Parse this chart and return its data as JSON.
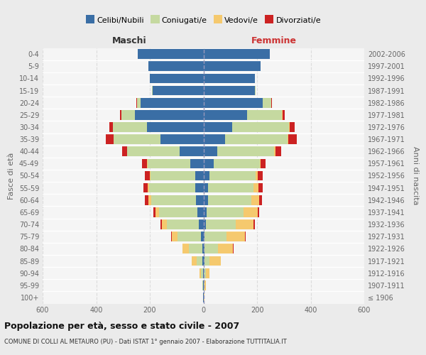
{
  "age_groups": [
    "0-4",
    "5-9",
    "10-14",
    "15-19",
    "20-24",
    "25-29",
    "30-34",
    "35-39",
    "40-44",
    "45-49",
    "50-54",
    "55-59",
    "60-64",
    "65-69",
    "70-74",
    "75-79",
    "80-84",
    "85-89",
    "90-94",
    "95-99",
    "100+"
  ],
  "birth_years": [
    "2002-2006",
    "1997-2001",
    "1992-1996",
    "1987-1991",
    "1982-1986",
    "1977-1981",
    "1972-1976",
    "1967-1971",
    "1962-1966",
    "1957-1961",
    "1952-1956",
    "1947-1951",
    "1942-1946",
    "1937-1941",
    "1932-1936",
    "1927-1931",
    "1922-1926",
    "1917-1921",
    "1912-1916",
    "1907-1911",
    "≤ 1906"
  ],
  "colors": {
    "celibi": "#3a6ea5",
    "coniugati": "#c5d9a0",
    "vedovi": "#f5c96e",
    "divorziati": "#cc2222"
  },
  "males": {
    "celibi": [
      245,
      205,
      200,
      190,
      235,
      255,
      210,
      160,
      90,
      50,
      30,
      30,
      28,
      22,
      18,
      8,
      5,
      4,
      2,
      1,
      1
    ],
    "coniugati": [
      0,
      0,
      1,
      2,
      14,
      52,
      128,
      175,
      195,
      158,
      168,
      173,
      168,
      143,
      118,
      88,
      50,
      22,
      6,
      2,
      0
    ],
    "vedovi": [
      0,
      0,
      0,
      0,
      0,
      0,
      0,
      0,
      1,
      2,
      2,
      4,
      8,
      13,
      18,
      22,
      22,
      18,
      7,
      2,
      0
    ],
    "divorziati": [
      0,
      0,
      0,
      0,
      2,
      4,
      14,
      28,
      18,
      18,
      18,
      18,
      14,
      10,
      5,
      2,
      0,
      0,
      0,
      0,
      0
    ]
  },
  "females": {
    "celibi": [
      248,
      212,
      192,
      192,
      220,
      162,
      108,
      82,
      52,
      38,
      22,
      18,
      18,
      12,
      8,
      5,
      5,
      4,
      2,
      1,
      1
    ],
    "coniugati": [
      0,
      0,
      1,
      4,
      32,
      132,
      212,
      232,
      212,
      172,
      172,
      168,
      162,
      138,
      112,
      82,
      48,
      18,
      6,
      2,
      0
    ],
    "vedovi": [
      0,
      0,
      0,
      0,
      1,
      2,
      2,
      3,
      4,
      4,
      8,
      18,
      28,
      52,
      68,
      68,
      58,
      42,
      14,
      5,
      2
    ],
    "divorziati": [
      0,
      0,
      0,
      0,
      2,
      7,
      18,
      32,
      22,
      18,
      18,
      17,
      11,
      7,
      4,
      2,
      2,
      0,
      0,
      0,
      0
    ]
  },
  "title": "Popolazione per età, sesso e stato civile - 2007",
  "subtitle": "COMUNE DI COLLI AL METAURO (PU) - Dati ISTAT 1° gennaio 2007 - Elaborazione TUTTITALIA.IT",
  "ylabel_left": "Fasce di età",
  "ylabel_right": "Anni di nascita",
  "xlabel_maschi": "Maschi",
  "xlabel_femmine": "Femmine",
  "xlim": 600,
  "bg_color": "#f5f5f5",
  "grid_color": "#dcdcdc",
  "fig_bg": "#ebebeb",
  "legend_labels": [
    "Celibi/Nubili",
    "Coniugati/e",
    "Vedovi/e",
    "Divorziati/e"
  ]
}
